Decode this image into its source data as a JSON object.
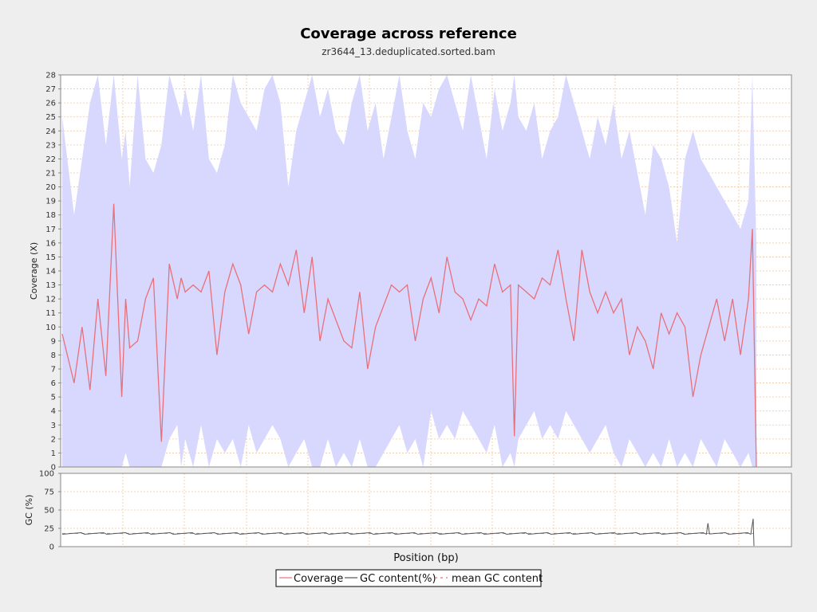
{
  "chart_data": {
    "title": "Coverage across reference",
    "subtitle": "zr3644_13.deduplicated.sorted.bam",
    "xlabel": "Position (bp)",
    "x_ticks_labeled": false,
    "colors": {
      "coverage": "#e8707a",
      "coverage_band": "#d8d8ff",
      "gc": "#555555",
      "mean_gc": "#e8707a",
      "grid": "#f0c8a0",
      "plot_bg": "#ffffff",
      "page_bg": "#eeeeee"
    },
    "coverage_panel": {
      "type": "line",
      "ylabel": "Coverage (X)",
      "ylim": [
        0,
        28
      ],
      "yticks": [
        "0",
        "1",
        "2",
        "3",
        "4",
        "5",
        "6",
        "7",
        "8",
        "9",
        "10",
        "11",
        "12",
        "13",
        "14",
        "15",
        "16",
        "17",
        "18",
        "19",
        "20",
        "21",
        "22",
        "23",
        "24",
        "25",
        "26",
        "27",
        "28"
      ],
      "grid": true,
      "series_name": "Coverage",
      "x": [
        0,
        15,
        25,
        35,
        45,
        55,
        65,
        75,
        80,
        85,
        95,
        105,
        115,
        125,
        135,
        145,
        150,
        155,
        165,
        175,
        185,
        195,
        205,
        215,
        225,
        235,
        245,
        255,
        265,
        275,
        285,
        295,
        305,
        315,
        325,
        335,
        345,
        355,
        365,
        375,
        385,
        395,
        405,
        415,
        425,
        435,
        445,
        455,
        465,
        475,
        485,
        495,
        505,
        515,
        525,
        535,
        545,
        555,
        565,
        570,
        575,
        585,
        595,
        605,
        615,
        625,
        635,
        645,
        655,
        665,
        675,
        685,
        695,
        705,
        715,
        725,
        735,
        745,
        755,
        765,
        775,
        785,
        795,
        805,
        815,
        825,
        835,
        845,
        855,
        865,
        870,
        875
      ],
      "values": [
        9.5,
        6,
        10,
        5.5,
        12,
        6.5,
        18.8,
        5,
        12,
        8.5,
        9,
        12,
        13.5,
        1.8,
        14.5,
        12,
        13.5,
        12.5,
        13,
        12.5,
        14,
        8,
        12.5,
        14.5,
        13,
        9.5,
        12.5,
        13,
        12.5,
        14.5,
        13,
        15.5,
        11,
        15,
        9,
        12,
        10.5,
        9,
        8.5,
        12.5,
        7,
        10,
        11.5,
        13,
        12.5,
        13,
        9,
        12,
        13.5,
        11,
        15,
        12.5,
        12,
        10.5,
        12,
        11.5,
        14.5,
        12.5,
        13,
        2.2,
        13,
        12.5,
        12,
        13.5,
        13,
        15.5,
        12,
        9,
        15.5,
        12.5,
        11,
        12.5,
        11,
        12,
        8,
        10,
        9,
        7,
        11,
        9.5,
        11,
        10,
        5,
        8,
        10,
        12,
        9,
        12,
        8,
        12,
        17,
        0
      ],
      "band_upper": [
        25,
        18,
        22,
        26,
        28,
        23,
        28,
        22,
        24,
        20,
        28,
        22,
        21,
        23,
        28,
        26,
        25,
        27,
        24,
        28,
        22,
        21,
        23,
        28,
        26,
        25,
        24,
        27,
        28,
        26,
        20,
        24,
        26,
        28,
        25,
        27,
        24,
        23,
        26,
        28,
        24,
        26,
        22,
        25,
        28,
        24,
        22,
        26,
        25,
        27,
        28,
        26,
        24,
        28,
        25,
        22,
        27,
        24,
        26,
        28,
        25,
        24,
        26,
        22,
        24,
        25,
        28,
        26,
        24,
        22,
        25,
        23,
        26,
        22,
        24,
        21,
        18,
        23,
        22,
        20,
        16,
        22,
        24,
        22,
        21,
        20,
        19,
        18,
        17,
        19,
        28,
        16
      ],
      "band_lower": [
        0,
        0,
        0,
        0,
        0,
        0,
        0,
        0,
        1,
        0,
        0,
        0,
        0,
        0,
        2,
        3,
        0,
        2,
        0,
        3,
        0,
        2,
        1,
        2,
        0,
        3,
        1,
        2,
        3,
        2,
        0,
        1,
        2,
        0,
        0,
        2,
        0,
        1,
        0,
        2,
        0,
        0,
        1,
        2,
        3,
        1,
        2,
        0,
        4,
        2,
        3,
        2,
        4,
        3,
        2,
        1,
        3,
        0,
        1,
        0,
        2,
        3,
        4,
        2,
        3,
        2,
        4,
        3,
        2,
        1,
        2,
        3,
        1,
        0,
        2,
        1,
        0,
        1,
        0,
        2,
        0,
        1,
        0,
        2,
        1,
        0,
        2,
        1,
        0,
        1,
        0,
        0
      ]
    },
    "gc_panel": {
      "type": "line",
      "ylabel": "GC (%)",
      "ylim": [
        0,
        100
      ],
      "yticks": [
        "0",
        "25",
        "50",
        "75",
        "100"
      ],
      "grid": true,
      "series": [
        {
          "name": "GC content(%)",
          "mean_value": 18,
          "spikes": [
            {
              "x": 814,
              "y": 32
            },
            {
              "x": 871,
              "y": 38
            },
            {
              "x": 872,
              "y": 1
            }
          ]
        },
        {
          "name": "mean GC content",
          "value": 18
        }
      ]
    },
    "legend": {
      "position": "bottom-center",
      "entries": [
        {
          "label": "Coverage",
          "style": "solid",
          "color": "#e8707a"
        },
        {
          "label": "GC content(%)",
          "style": "solid",
          "color": "#555555"
        },
        {
          "label": "mean GC content",
          "style": "dashed",
          "color": "#e8707a"
        }
      ]
    }
  }
}
